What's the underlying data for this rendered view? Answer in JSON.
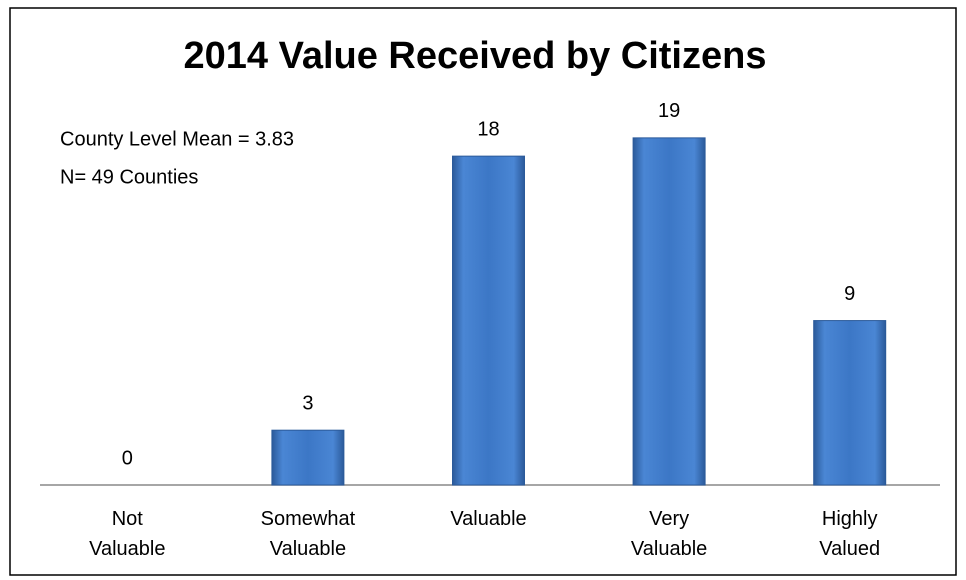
{
  "chart_data": {
    "type": "bar",
    "title": "2014 Value Received by Citizens",
    "annotations": [
      "County Level  Mean = 3.83",
      "N= 49 Counties"
    ],
    "categories": [
      "Not Valuable",
      "Somewhat Valuable",
      "Valuable",
      "Very Valuable",
      "Highly Valued"
    ],
    "values": [
      0,
      3,
      18,
      19,
      9
    ],
    "color": "#3a75c4"
  }
}
